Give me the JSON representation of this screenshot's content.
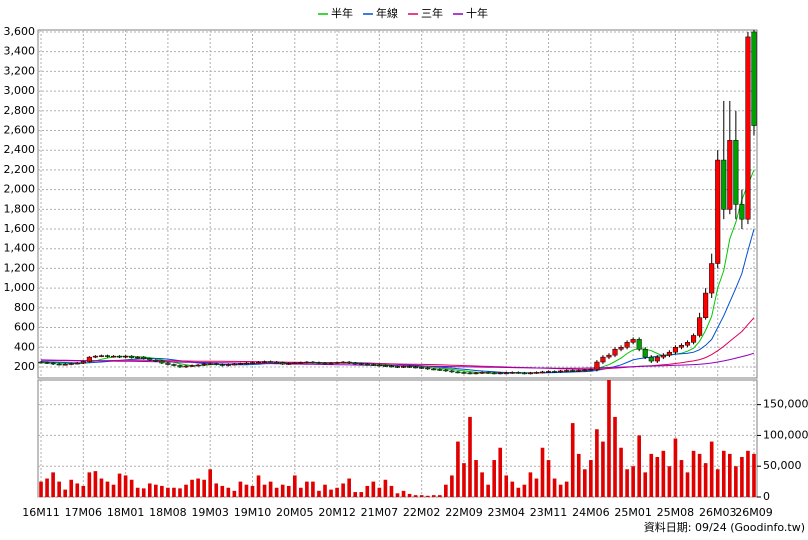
{
  "chart_data": {
    "type": "candlestick",
    "categories": [
      "16M11",
      null,
      null,
      null,
      null,
      null,
      null,
      "17M06",
      null,
      null,
      null,
      null,
      null,
      null,
      "18M01",
      null,
      null,
      null,
      null,
      null,
      null,
      "18M08",
      null,
      null,
      null,
      null,
      null,
      null,
      "19M03",
      null,
      null,
      null,
      null,
      null,
      null,
      "19M10",
      null,
      null,
      null,
      null,
      null,
      null,
      "20M05",
      null,
      null,
      null,
      null,
      null,
      null,
      "20M12",
      null,
      null,
      null,
      null,
      null,
      null,
      "21M07",
      null,
      null,
      null,
      null,
      null,
      null,
      "22M02",
      null,
      null,
      null,
      null,
      null,
      null,
      "22M09",
      null,
      null,
      null,
      null,
      null,
      null,
      "23M04",
      null,
      null,
      null,
      null,
      null,
      null,
      "23M11",
      null,
      null,
      null,
      null,
      null,
      null,
      "24M06",
      null,
      null,
      null,
      null,
      null,
      null,
      "25M01",
      null,
      null,
      null,
      null,
      null,
      null,
      "25M08",
      null,
      null,
      null,
      null,
      null,
      null,
      "26M03",
      null,
      null,
      null,
      null,
      null,
      "26M09"
    ],
    "open": [
      250,
      245,
      240,
      230,
      225,
      228,
      235,
      240,
      255,
      300,
      310,
      315,
      305,
      310,
      300,
      310,
      295,
      300,
      285,
      270,
      260,
      240,
      225,
      215,
      200,
      210,
      215,
      220,
      230,
      235,
      225,
      215,
      225,
      230,
      235,
      240,
      245,
      250,
      255,
      250,
      245,
      230,
      235,
      240,
      245,
      250,
      245,
      240,
      235,
      240,
      245,
      250,
      240,
      235,
      230,
      225,
      220,
      215,
      210,
      205,
      200,
      205,
      200,
      195,
      190,
      180,
      175,
      170,
      160,
      150,
      145,
      140,
      135,
      140,
      145,
      140,
      135,
      140,
      140,
      145,
      140,
      135,
      140,
      145,
      150,
      155,
      150,
      160,
      165,
      160,
      165,
      170,
      175,
      250,
      300,
      320,
      380,
      400,
      450,
      480,
      380,
      300,
      260,
      300,
      320,
      350,
      400,
      420,
      450,
      520,
      700,
      950,
      1250,
      2300,
      1800,
      2500,
      1850,
      1700,
      3600
    ],
    "high": [
      260,
      255,
      250,
      240,
      238,
      245,
      250,
      265,
      310,
      320,
      325,
      325,
      320,
      320,
      320,
      320,
      310,
      310,
      295,
      280,
      270,
      250,
      235,
      225,
      220,
      225,
      230,
      240,
      245,
      245,
      235,
      235,
      240,
      245,
      250,
      255,
      260,
      265,
      265,
      260,
      255,
      245,
      250,
      255,
      260,
      260,
      255,
      250,
      250,
      255,
      260,
      260,
      250,
      245,
      240,
      235,
      230,
      225,
      220,
      215,
      215,
      215,
      210,
      205,
      200,
      190,
      185,
      180,
      170,
      160,
      155,
      150,
      150,
      155,
      155,
      150,
      150,
      150,
      155,
      155,
      150,
      150,
      155,
      160,
      165,
      165,
      170,
      175,
      175,
      175,
      180,
      185,
      270,
      320,
      340,
      400,
      420,
      470,
      500,
      500,
      400,
      320,
      320,
      340,
      370,
      420,
      440,
      470,
      540,
      750,
      1000,
      1350,
      2400,
      2900,
      2900,
      2800,
      2000,
      3600,
      3620
    ],
    "low": [
      235,
      230,
      220,
      215,
      215,
      218,
      225,
      230,
      245,
      290,
      300,
      295,
      295,
      290,
      290,
      285,
      285,
      275,
      260,
      250,
      230,
      215,
      205,
      190,
      190,
      200,
      205,
      210,
      220,
      215,
      205,
      205,
      215,
      220,
      225,
      230,
      235,
      240,
      245,
      240,
      220,
      220,
      225,
      230,
      235,
      235,
      230,
      225,
      225,
      230,
      235,
      230,
      225,
      220,
      215,
      210,
      205,
      200,
      195,
      190,
      190,
      190,
      185,
      180,
      170,
      165,
      160,
      150,
      140,
      135,
      130,
      125,
      125,
      130,
      130,
      125,
      125,
      130,
      130,
      130,
      125,
      125,
      130,
      135,
      140,
      140,
      140,
      150,
      150,
      150,
      155,
      160,
      155,
      230,
      280,
      300,
      360,
      380,
      430,
      360,
      280,
      240,
      240,
      280,
      300,
      330,
      380,
      400,
      430,
      500,
      680,
      900,
      1200,
      1700,
      1750,
      1700,
      1600,
      1650,
      2550
    ],
    "close": [
      245,
      240,
      230,
      225,
      228,
      235,
      240,
      255,
      300,
      310,
      315,
      305,
      310,
      300,
      310,
      295,
      300,
      285,
      270,
      260,
      240,
      225,
      215,
      200,
      210,
      215,
      220,
      230,
      235,
      225,
      215,
      225,
      230,
      235,
      240,
      245,
      250,
      255,
      250,
      245,
      230,
      235,
      240,
      245,
      250,
      245,
      240,
      235,
      240,
      245,
      250,
      240,
      235,
      230,
      225,
      220,
      215,
      210,
      205,
      200,
      205,
      200,
      195,
      190,
      180,
      175,
      170,
      160,
      150,
      145,
      140,
      135,
      140,
      145,
      140,
      135,
      140,
      140,
      145,
      140,
      135,
      140,
      145,
      150,
      155,
      150,
      160,
      165,
      160,
      165,
      170,
      175,
      250,
      300,
      320,
      380,
      400,
      450,
      480,
      380,
      300,
      260,
      300,
      320,
      350,
      400,
      420,
      450,
      520,
      700,
      950,
      1250,
      2300,
      1800,
      2500,
      1850,
      1700,
      3550,
      2650
    ],
    "up_color": "#ff0000",
    "down_color": "#00a000",
    "ylim": [
      88,
      3620
    ],
    "yticks": [
      200,
      400,
      600,
      800,
      {
        "value": 1000,
        "label": "1,000"
      },
      {
        "value": 1200,
        "label": "1,200"
      },
      {
        "value": 1400,
        "label": "1,400"
      },
      {
        "value": 1600,
        "label": "1,600"
      },
      {
        "value": 1800,
        "label": "1,800"
      },
      {
        "value": 2000,
        "label": "2,000"
      },
      {
        "value": 2200,
        "label": "2,200"
      },
      {
        "value": 2400,
        "label": "2,400"
      },
      {
        "value": 2600,
        "label": "2,600"
      },
      {
        "value": 2800,
        "label": "2,800"
      },
      {
        "value": 3000,
        "label": "3,000"
      },
      {
        "value": 3200,
        "label": "3,200"
      },
      {
        "value": 3400,
        "label": "3,400"
      },
      {
        "value": 3600,
        "label": "3,600"
      }
    ],
    "grid": true,
    "series": [
      {
        "name": "半年",
        "color": "#00c800",
        "values": [
          250,
          248,
          245,
          240,
          235,
          234,
          233,
          236,
          246,
          261,
          278,
          291,
          301,
          306,
          308,
          306,
          303,
          301,
          293,
          285,
          272,
          260,
          247,
          233,
          222,
          214,
          212,
          216,
          222,
          226,
          226,
          225,
          226,
          228,
          232,
          235,
          238,
          243,
          247,
          248,
          246,
          244,
          242,
          242,
          243,
          243,
          244,
          243,
          242,
          243,
          244,
          243,
          242,
          240,
          237,
          233,
          228,
          223,
          218,
          213,
          209,
          206,
          203,
          200,
          196,
          191,
          187,
          182,
          175,
          167,
          160,
          153,
          147,
          144,
          142,
          140,
          139,
          139,
          140,
          140,
          140,
          140,
          141,
          142,
          144,
          146,
          149,
          154,
          157,
          159,
          163,
          166,
          183,
          203,
          223,
          255,
          290,
          337,
          372,
          387,
          380,
          365,
          337,
          310,
          318,
          330,
          340,
          360,
          390,
          460,
          570,
          715,
          1000,
          1180,
          1500,
          1670,
          1900,
          2050,
          2200
        ]
      },
      {
        "name": "年線",
        "color": "#0050d0",
        "values": [
          255,
          252,
          250,
          247,
          245,
          243,
          241,
          240,
          242,
          246,
          250,
          255,
          261,
          266,
          272,
          277,
          282,
          285,
          287,
          287,
          285,
          280,
          272,
          264,
          256,
          248,
          240,
          235,
          230,
          228,
          226,
          225,
          224,
          223,
          222,
          225,
          228,
          232,
          235,
          237,
          237,
          238,
          239,
          240,
          241,
          242,
          242,
          243,
          243,
          243,
          243,
          243,
          242,
          241,
          240,
          238,
          235,
          232,
          229,
          226,
          223,
          220,
          217,
          213,
          209,
          204,
          199,
          194,
          189,
          182,
          176,
          170,
          164,
          159,
          155,
          151,
          147,
          144,
          142,
          141,
          140,
          140,
          140,
          141,
          142,
          143,
          145,
          147,
          149,
          151,
          153,
          156,
          165,
          176,
          188,
          205,
          222,
          246,
          272,
          285,
          292,
          300,
          309,
          317,
          325,
          330,
          335,
          340,
          350,
          375,
          420,
          480,
          600,
          720,
          860,
          1000,
          1150,
          1380,
          1600
        ]
      },
      {
        "name": "三年",
        "color": "#e0005a",
        "values": [
          268,
          267,
          266,
          265,
          264,
          263,
          262,
          262,
          262,
          263,
          264,
          265,
          266,
          267,
          268,
          268,
          268,
          268,
          267,
          266,
          265,
          264,
          263,
          262,
          261,
          260,
          259,
          258,
          258,
          257,
          257,
          256,
          256,
          255,
          255,
          254,
          253,
          252,
          251,
          250,
          249,
          248,
          247,
          246,
          245,
          244,
          243,
          242,
          241,
          240,
          239,
          238,
          237,
          236,
          235,
          234,
          233,
          232,
          231,
          230,
          229,
          228,
          227,
          226,
          225,
          224,
          222,
          220,
          218,
          216,
          214,
          212,
          210,
          208,
          206,
          204,
          202,
          200,
          198,
          196,
          194,
          192,
          190,
          188,
          186,
          184,
          182,
          180,
          178,
          176,
          175,
          176,
          178,
          181,
          184,
          188,
          192,
          197,
          202,
          207,
          210,
          213,
          217,
          222,
          228,
          235,
          243,
          252,
          262,
          275,
          295,
          325,
          365,
          410,
          460,
          510,
          560,
          630,
          700
        ]
      },
      {
        "name": "十年",
        "color": "#9000c0",
        "values": [
          272,
          271,
          270,
          269,
          268,
          267,
          266,
          265,
          264,
          263,
          262,
          261,
          260,
          259,
          258,
          257,
          256,
          255,
          254,
          253,
          252,
          251,
          250,
          249,
          248,
          247,
          246,
          245,
          244,
          243,
          242,
          241,
          240,
          239,
          238,
          237,
          236,
          235,
          234,
          233,
          232,
          231,
          230,
          229,
          228,
          227,
          226,
          225,
          224,
          223,
          222,
          221,
          220,
          219,
          218,
          217,
          216,
          215,
          214,
          213,
          212,
          211,
          210,
          209,
          208,
          207,
          206,
          205,
          204,
          203,
          202,
          201,
          200,
          199,
          198,
          197,
          196,
          195,
          194,
          193,
          192,
          191,
          190,
          189,
          188,
          187,
          186,
          186,
          186,
          187,
          188,
          189,
          191,
          193,
          195,
          197,
          199,
          201,
          203,
          205,
          207,
          209,
          211,
          213,
          215,
          217,
          219,
          221,
          224,
          227,
          232,
          240,
          250,
          262,
          275,
          290,
          305,
          320,
          340
        ]
      }
    ],
    "volume": {
      "color": "#e00000",
      "values": [
        25000,
        30000,
        40000,
        25000,
        12000,
        28000,
        22000,
        18000,
        40000,
        42000,
        30000,
        25000,
        20000,
        38000,
        35000,
        28000,
        15000,
        14000,
        22000,
        20000,
        18000,
        15000,
        15000,
        14000,
        20000,
        28000,
        30000,
        28000,
        45000,
        22000,
        18000,
        15000,
        10000,
        25000,
        20000,
        18000,
        35000,
        20000,
        25000,
        15000,
        20000,
        18000,
        35000,
        15000,
        25000,
        25000,
        10000,
        20000,
        12000,
        15000,
        22000,
        30000,
        8000,
        8000,
        18000,
        25000,
        15000,
        28000,
        18000,
        6000,
        10000,
        5000,
        3000,
        3000,
        2000,
        3000,
        3000,
        20000,
        35000,
        90000,
        55000,
        130000,
        60000,
        40000,
        20000,
        60000,
        80000,
        35000,
        25000,
        15000,
        20000,
        40000,
        30000,
        80000,
        60000,
        30000,
        20000,
        25000,
        120000,
        70000,
        45000,
        60000,
        110000,
        90000,
        190000,
        130000,
        80000,
        45000,
        50000,
        100000,
        40000,
        70000,
        65000,
        75000,
        50000,
        95000,
        60000,
        40000,
        75000,
        70000,
        55000,
        90000,
        45000,
        75000,
        70000,
        50000,
        65000,
        75000,
        70000
      ],
      "ylim": [
        0,
        190000
      ],
      "yticks": [
        0,
        {
          "value": 50000,
          "label": "50,000"
        },
        {
          "value": 100000,
          "label": "100,000"
        },
        {
          "value": 150000,
          "label": "150,000"
        }
      ]
    },
    "note": "資料日期: 09/24  (Goodinfo.tw)"
  }
}
